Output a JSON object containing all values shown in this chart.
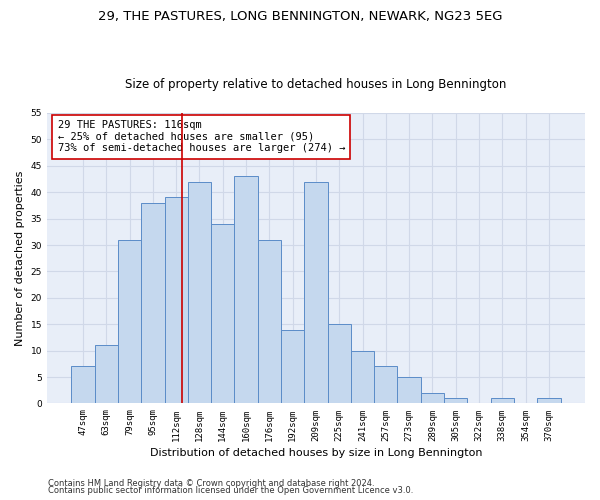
{
  "title": "29, THE PASTURES, LONG BENNINGTON, NEWARK, NG23 5EG",
  "subtitle": "Size of property relative to detached houses in Long Bennington",
  "xlabel": "Distribution of detached houses by size in Long Bennington",
  "ylabel": "Number of detached properties",
  "categories": [
    "47sqm",
    "63sqm",
    "79sqm",
    "95sqm",
    "112sqm",
    "128sqm",
    "144sqm",
    "160sqm",
    "176sqm",
    "192sqm",
    "209sqm",
    "225sqm",
    "241sqm",
    "257sqm",
    "273sqm",
    "289sqm",
    "305sqm",
    "322sqm",
    "338sqm",
    "354sqm",
    "370sqm"
  ],
  "values": [
    7,
    11,
    31,
    38,
    39,
    42,
    34,
    43,
    31,
    14,
    42,
    15,
    10,
    7,
    5,
    2,
    1,
    0,
    1,
    0,
    1
  ],
  "bar_color": "#c5d8ee",
  "bar_edge_color": "#5b8cc8",
  "grid_color": "#d0d8e8",
  "background_color": "#e8eef8",
  "property_line_color": "#cc0000",
  "annotation_text": "29 THE PASTURES: 116sqm\n← 25% of detached houses are smaller (95)\n73% of semi-detached houses are larger (274) →",
  "annotation_box_color": "#ffffff",
  "annotation_box_edge_color": "#cc0000",
  "ylim": [
    0,
    55
  ],
  "yticks": [
    0,
    5,
    10,
    15,
    20,
    25,
    30,
    35,
    40,
    45,
    50,
    55
  ],
  "footer_line1": "Contains HM Land Registry data © Crown copyright and database right 2024.",
  "footer_line2": "Contains public sector information licensed under the Open Government Licence v3.0.",
  "title_fontsize": 9.5,
  "subtitle_fontsize": 8.5,
  "xlabel_fontsize": 8,
  "ylabel_fontsize": 8,
  "tick_fontsize": 6.5,
  "annotation_fontsize": 7.5,
  "footer_fontsize": 6
}
